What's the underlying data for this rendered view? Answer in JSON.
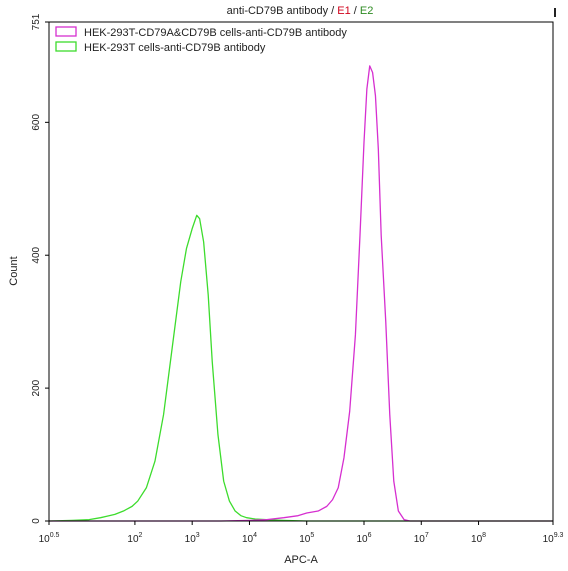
{
  "chart_data": {
    "type": "line",
    "title_parts": [
      {
        "text": "anti-CD79B antibody",
        "color": "#222222"
      },
      {
        "text": " / ",
        "color": "#222222"
      },
      {
        "text": "E1",
        "color": "#d0021b"
      },
      {
        "text": " / ",
        "color": "#222222"
      },
      {
        "text": "E2",
        "color": "#2e8b22"
      }
    ],
    "xlabel": "APC-A",
    "ylabel": "Count",
    "x_scale": "log10",
    "xlim_exponent": [
      0.5,
      9.3
    ],
    "ylim": [
      0,
      751
    ],
    "x_ticks": [
      {
        "base": "10",
        "exp": "0.5",
        "value": 0.5
      },
      {
        "base": "10",
        "exp": "2",
        "value": 2
      },
      {
        "base": "10",
        "exp": "3",
        "value": 3
      },
      {
        "base": "10",
        "exp": "4",
        "value": 4
      },
      {
        "base": "10",
        "exp": "5",
        "value": 5
      },
      {
        "base": "10",
        "exp": "6",
        "value": 6
      },
      {
        "base": "10",
        "exp": "7",
        "value": 7
      },
      {
        "base": "10",
        "exp": "8",
        "value": 8
      },
      {
        "base": "10",
        "exp": "9.3",
        "value": 9.3
      }
    ],
    "y_ticks": [
      "0",
      "200",
      "400",
      "600",
      "751"
    ],
    "grid": false,
    "legend_position": "top-left",
    "series": [
      {
        "name": "HEK-293T-CD79A&CD79B cells-anti-CD79B antibody",
        "color": "#d62fd0",
        "x_log10": [
          0.5,
          3.5,
          4.0,
          4.3,
          4.6,
          4.85,
          5.0,
          5.2,
          5.35,
          5.45,
          5.55,
          5.65,
          5.75,
          5.85,
          5.93,
          6.0,
          6.05,
          6.1,
          6.15,
          6.2,
          6.25,
          6.3,
          6.38,
          6.45,
          6.52,
          6.6,
          6.7,
          6.8,
          9.3
        ],
        "y": [
          0,
          0,
          1,
          2,
          5,
          8,
          12,
          15,
          22,
          32,
          50,
          95,
          165,
          280,
          430,
          570,
          650,
          685,
          675,
          640,
          560,
          430,
          300,
          160,
          60,
          15,
          2,
          0,
          0
        ]
      },
      {
        "name": "HEK-293T cells-anti-CD79B antibody",
        "color": "#3ddc2d",
        "x_log10": [
          0.5,
          0.9,
          1.2,
          1.4,
          1.5,
          1.65,
          1.8,
          1.95,
          2.05,
          2.2,
          2.35,
          2.5,
          2.65,
          2.8,
          2.9,
          3.0,
          3.08,
          3.13,
          3.2,
          3.28,
          3.35,
          3.45,
          3.55,
          3.65,
          3.75,
          3.85,
          3.95,
          4.1,
          4.3,
          4.6,
          5.0,
          9.3
        ],
        "y": [
          0,
          1,
          2,
          5,
          7,
          10,
          15,
          22,
          30,
          50,
          90,
          160,
          260,
          360,
          410,
          440,
          460,
          455,
          420,
          340,
          240,
          130,
          60,
          30,
          15,
          8,
          5,
          3,
          2,
          1,
          0,
          0
        ]
      }
    ]
  }
}
